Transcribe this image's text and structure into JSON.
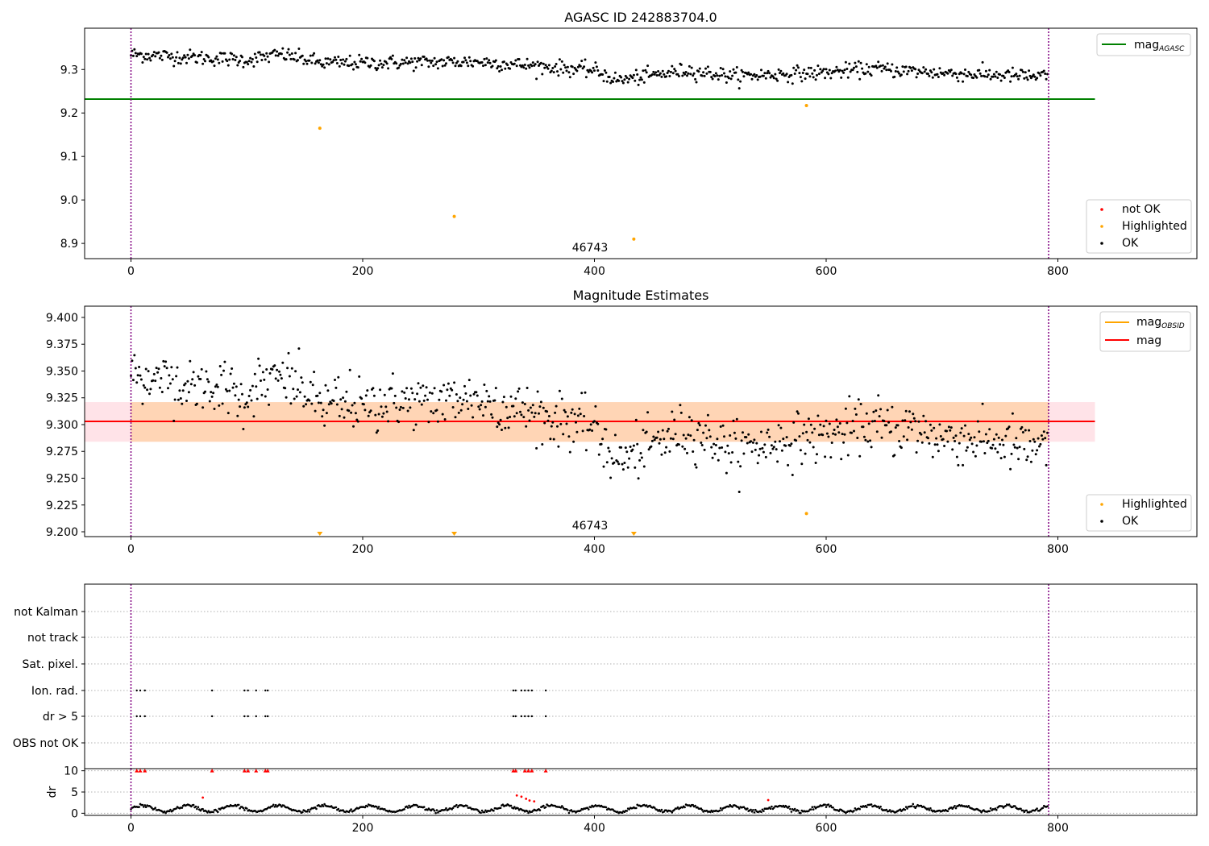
{
  "chart_data": [
    {
      "type": "scatter",
      "title": "AGASC ID 242883704.0",
      "xlim": [
        -40,
        920
      ],
      "ylim": [
        8.865,
        9.395
      ],
      "xticks": [
        0,
        200,
        400,
        600,
        800
      ],
      "yticks": [
        8.9,
        9.0,
        9.1,
        9.2,
        9.3
      ],
      "ytick_labels": [
        "8.9",
        "9.0",
        "9.1",
        "9.2",
        "9.3"
      ],
      "obs_boundaries": [
        0,
        792
      ],
      "obsid_annotation": {
        "text": "46743",
        "x": 395,
        "y": 8.885
      },
      "reference_lines": [
        {
          "name": "mag_AGASC",
          "name_main": "mag",
          "name_sub": "AGASC",
          "y": 9.232,
          "x_range": [
            -40,
            832
          ],
          "color": "#008000"
        }
      ],
      "series": [
        {
          "name": "not OK",
          "color": "#ff0000",
          "points": []
        },
        {
          "name": "Highlighted",
          "color": "#ffa500",
          "points": [
            [
              163,
              9.165
            ],
            [
              279,
              8.962
            ],
            [
              434,
              8.91
            ],
            [
              583,
              9.217
            ]
          ]
        },
        {
          "name": "OK",
          "color": "#000000",
          "n_points": 792,
          "trend": [
            [
              0,
              9.335
            ],
            [
              100,
              9.322
            ],
            [
              130,
              9.335
            ],
            [
              165,
              9.315
            ],
            [
              200,
              9.315
            ],
            [
              300,
              9.318
            ],
            [
              400,
              9.298
            ],
            [
              420,
              9.275
            ],
            [
              480,
              9.298
            ],
            [
              520,
              9.285
            ],
            [
              600,
              9.293
            ],
            [
              640,
              9.302
            ],
            [
              700,
              9.292
            ],
            [
              792,
              9.283
            ]
          ]
        }
      ],
      "legend": {
        "upper_right": [
          "mag_AGASC"
        ],
        "lower_right": [
          "not OK",
          "Highlighted",
          "OK"
        ]
      }
    },
    {
      "type": "scatter",
      "title": "Magnitude Estimates",
      "xlim": [
        -40,
        920
      ],
      "ylim": [
        9.1955,
        9.4105
      ],
      "xticks": [
        0,
        200,
        400,
        600,
        800
      ],
      "yticks": [
        9.2,
        9.225,
        9.25,
        9.275,
        9.3,
        9.325,
        9.35,
        9.375,
        9.4
      ],
      "ytick_labels": [
        "9.200",
        "9.225",
        "9.250",
        "9.275",
        "9.300",
        "9.325",
        "9.350",
        "9.375",
        "9.400"
      ],
      "obs_boundaries": [
        0,
        792
      ],
      "obsid_annotation": {
        "text": "46743",
        "x": 395,
        "y": 9.203
      },
      "mag_line": {
        "name": "mag",
        "y": 9.303,
        "x_range": [
          -40,
          832
        ],
        "color": "#ff0000"
      },
      "mag_band": {
        "y_range": [
          9.284,
          9.321
        ],
        "x_range": [
          -40,
          832
        ],
        "color": "#ffc0cb"
      },
      "obsid_band": {
        "name": "mag_OBSID",
        "name_main": "mag",
        "name_sub": "OBSID",
        "y_range": [
          9.284,
          9.321
        ],
        "x_range": [
          0,
          792
        ],
        "color": "#ffa500"
      },
      "series": [
        {
          "name": "Highlighted",
          "color": "#ffa500",
          "points": [
            [
              583,
              9.217
            ]
          ],
          "below_axis_markers": [
            163,
            279,
            434
          ]
        },
        {
          "name": "OK",
          "color": "#000000",
          "n_points": 792
        }
      ],
      "legend": {
        "upper_right": [
          "mag_OBSID",
          "mag"
        ],
        "lower_right": [
          "Highlighted",
          "OK"
        ]
      }
    },
    {
      "type": "scatter",
      "title": "",
      "xlim": [
        -40,
        920
      ],
      "categories": [
        "not Kalman",
        "not track",
        "Sat. pixel.",
        "Ion. rad.",
        "dr > 5",
        "OBS not OK"
      ],
      "flag_points": {
        "Ion. rad.": [
          5,
          8,
          12,
          70,
          98,
          101,
          108,
          116,
          118,
          330,
          332,
          337,
          340,
          343,
          346,
          358
        ],
        "dr > 5": [
          5,
          8,
          12,
          70,
          98,
          101,
          108,
          116,
          118,
          330,
          332,
          337,
          340,
          343,
          346,
          358
        ],
        "not Kalman": [],
        "not track": [],
        "Sat. pixel.": [],
        "OBS not OK": []
      },
      "obs_boundaries": [
        0,
        792
      ]
    },
    {
      "type": "scatter",
      "title": "",
      "ylabel": "dr",
      "xlim": [
        -40,
        920
      ],
      "ylim": [
        -0.5,
        10.5
      ],
      "xticks": [
        0,
        200,
        400,
        600,
        800
      ],
      "yticks": [
        0,
        5,
        10
      ],
      "ytick_labels": [
        "0",
        "5",
        "10"
      ],
      "obs_boundaries": [
        0,
        792
      ],
      "clipped_at": 10,
      "outliers_red": [
        [
          5,
          10
        ],
        [
          8,
          10
        ],
        [
          12,
          10
        ],
        [
          62,
          3.7
        ],
        [
          70,
          10
        ],
        [
          98,
          10
        ],
        [
          101,
          10
        ],
        [
          108,
          10
        ],
        [
          116,
          10
        ],
        [
          118,
          10
        ],
        [
          330,
          10
        ],
        [
          332,
          10
        ],
        [
          333,
          4.2
        ],
        [
          337,
          3.9
        ],
        [
          340,
          10
        ],
        [
          341,
          3.4
        ],
        [
          343,
          10
        ],
        [
          344,
          3.0
        ],
        [
          346,
          10
        ],
        [
          348,
          2.8
        ],
        [
          358,
          10
        ],
        [
          550,
          3.1
        ]
      ]
    }
  ]
}
